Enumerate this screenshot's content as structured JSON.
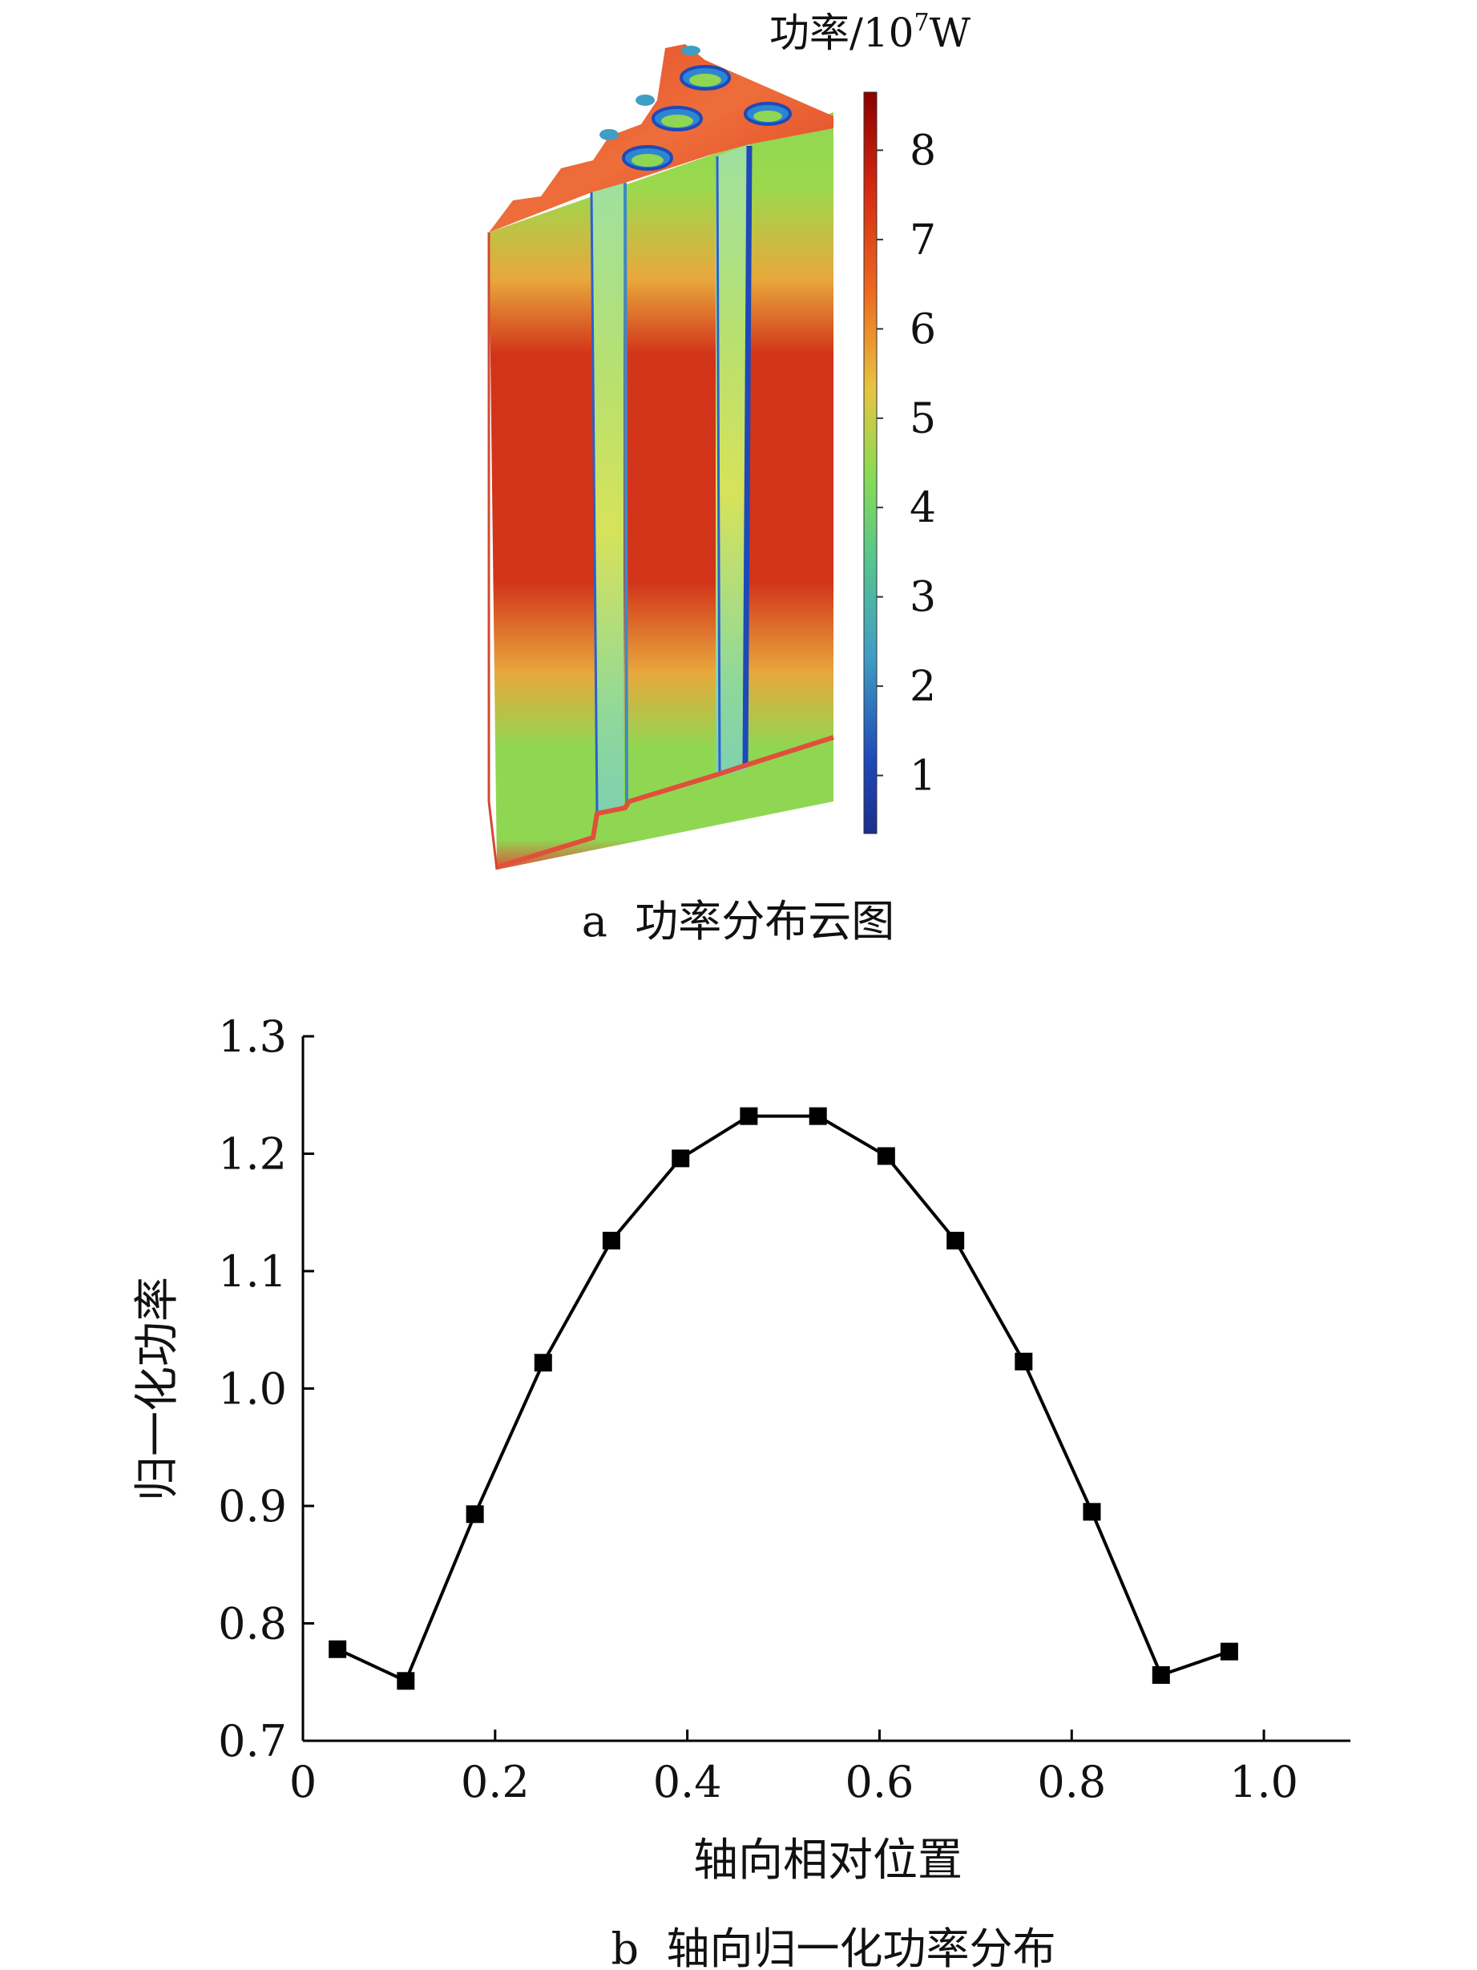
{
  "panel_a": {
    "caption": "a  功率分布云图",
    "colorbar": {
      "title": "功率/10",
      "title_exp": "7",
      "title_unit": "W",
      "ticks": [
        "8",
        "7",
        "6",
        "5",
        "4",
        "3",
        "2",
        "1"
      ],
      "colors": [
        "#8b0000",
        "#d42a10",
        "#ee6a20",
        "#e7c440",
        "#86dc55",
        "#57c58f",
        "#3f9ec4",
        "#1f49b8",
        "#1b2e8e"
      ]
    },
    "model": {
      "face_colors": {
        "hot": "#d2341a",
        "warm": "#e8a83c",
        "cool": "#8fd752",
        "channel": "#2b5fd1",
        "hole": "#2e86d2"
      }
    }
  },
  "panel_b": {
    "caption": "b  轴向归一化功率分布"
  },
  "chart_data": {
    "type": "line",
    "title": "",
    "xlabel": "轴向相对位置",
    "ylabel": "归一化功率",
    "xlim": [
      0,
      1.09
    ],
    "ylim": [
      0.7,
      1.3
    ],
    "xticks": [
      0,
      0.2,
      0.4,
      0.6,
      0.8,
      1.0
    ],
    "xtick_labels": [
      "0",
      "0.2",
      "0.4",
      "0.6",
      "0.8",
      "1.0"
    ],
    "yticks": [
      0.7,
      0.8,
      0.9,
      1.0,
      1.1,
      1.2,
      1.3
    ],
    "ytick_labels": [
      "0.7",
      "0.8",
      "0.9",
      "1.0",
      "1.1",
      "1.2",
      "1.3"
    ],
    "series": [
      {
        "marker": "square",
        "color": "#000000",
        "x": [
          0.036,
          0.107,
          0.179,
          0.25,
          0.321,
          0.393,
          0.464,
          0.536,
          0.607,
          0.679,
          0.75,
          0.821,
          0.893,
          0.964
        ],
        "y": [
          0.778,
          0.751,
          0.893,
          1.022,
          1.126,
          1.196,
          1.232,
          1.232,
          1.198,
          1.126,
          1.023,
          0.895,
          0.756,
          0.776
        ]
      }
    ]
  }
}
